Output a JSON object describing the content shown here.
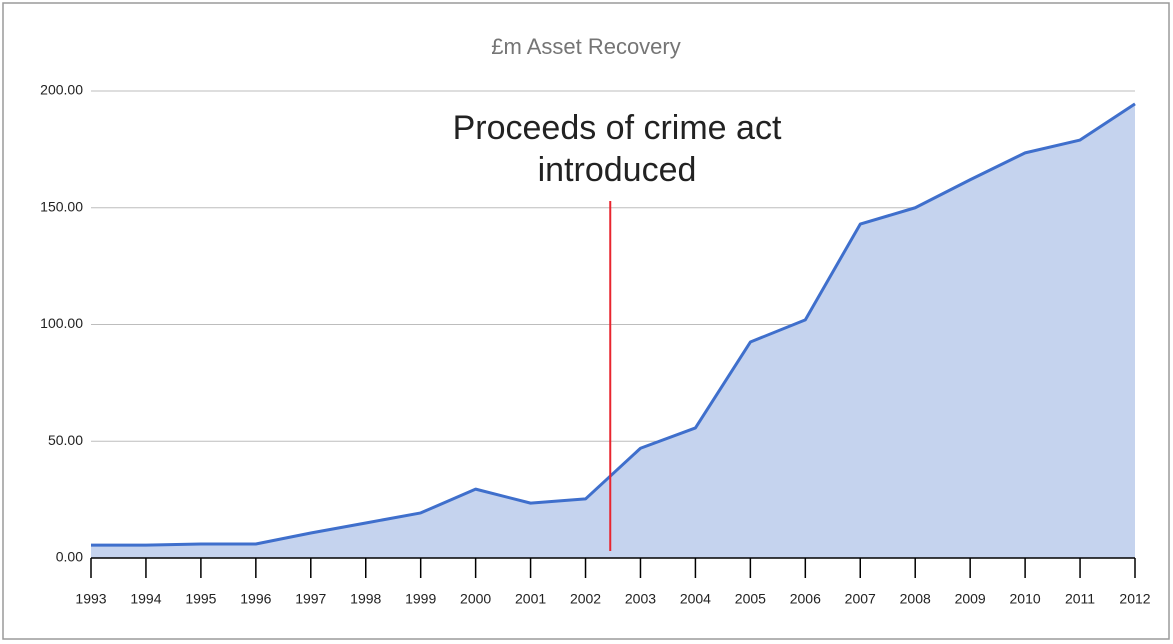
{
  "chart_data": {
    "type": "area",
    "title": "£m Asset Recovery",
    "categories": [
      "1993",
      "1994",
      "1995",
      "1996",
      "1997",
      "1998",
      "1999",
      "2000",
      "2001",
      "2002",
      "2003",
      "2004",
      "2005",
      "2006",
      "2007",
      "2008",
      "2009",
      "2010",
      "2011",
      "2012"
    ],
    "series": [
      {
        "name": "£m Asset Recovery",
        "color": "#3f6fcc",
        "fill": "#c5d3ee",
        "values": [
          5.5,
          5.5,
          6,
          6,
          10.7,
          15,
          19.3,
          29.5,
          23.5,
          25.3,
          47,
          55.7,
          92.5,
          102,
          143,
          150,
          162,
          173.5,
          179,
          194.5
        ]
      }
    ],
    "ylim": [
      0,
      200
    ],
    "yticks": [
      {
        "value": 0,
        "label": "0.00"
      },
      {
        "value": 50,
        "label": "50.00"
      },
      {
        "value": 100,
        "label": "100.00"
      },
      {
        "value": 150,
        "label": "150.00"
      },
      {
        "value": 200,
        "label": "200.00"
      }
    ],
    "grid": true,
    "annotation": {
      "lines": [
        "Proceeds of crime act",
        "introduced"
      ],
      "color": "#e8252f"
    }
  }
}
